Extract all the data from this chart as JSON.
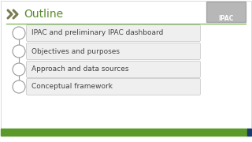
{
  "title": "Outline",
  "title_color": "#5a8a2a",
  "title_fontsize": 10,
  "chevron_color": "#7a7a50",
  "header_line_color": "#6aaa3a",
  "footer_bar_color": "#5a9a2a",
  "footer_dark_color": "#1a3a6a",
  "items": [
    "IPAC and preliminary IPAC dashboard",
    "Objectives and purposes",
    "Approach and data sources",
    "Conceptual framework"
  ],
  "item_box_facecolor": "#efefef",
  "item_box_edgecolor": "#cccccc",
  "item_text_color": "#444444",
  "item_text_fontsize": 6.5,
  "circle_facecolor": "#ffffff",
  "circle_edgecolor": "#999999",
  "connector_color": "#999999",
  "slide_bg": "#ffffff",
  "outer_border_color": "#cccccc",
  "ipac_box_color": "#888888"
}
